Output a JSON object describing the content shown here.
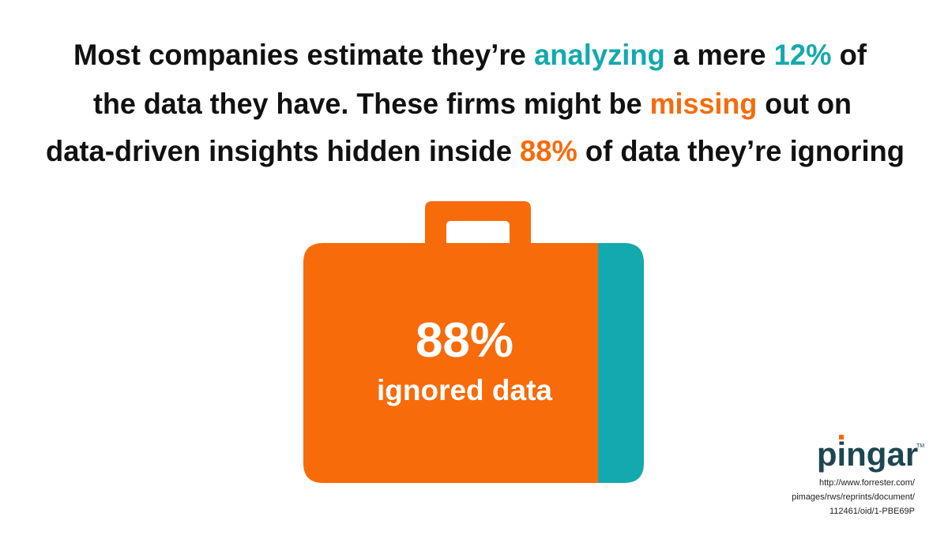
{
  "headline": {
    "lines": [
      [
        {
          "text": "Most companies estimate they’re "
        },
        {
          "text": "analyzing",
          "color": "#14a9ae"
        },
        {
          "text": " a mere "
        },
        {
          "text": "12%",
          "color": "#14a9ae"
        },
        {
          "text": " of"
        }
      ],
      [
        {
          "text": "the data they have.  These firms might be "
        },
        {
          "text": "missing",
          "color": "#f76b0b"
        },
        {
          "text": " out on"
        }
      ],
      [
        {
          "text": "data-driven insights hidden  inside "
        },
        {
          "text": "88%",
          "color": "#f76b0b"
        },
        {
          "text": " of data they’re ignoring"
        }
      ]
    ]
  },
  "briefcase": {
    "big_label": "88%",
    "small_label": "ignored data"
  },
  "logo": {
    "name": "pingar",
    "mark": "TM"
  },
  "source": [
    "http://www.forrester.com/",
    "pimages/rws/reprints/document/",
    "112461/oid/1-PBE69P"
  ]
}
